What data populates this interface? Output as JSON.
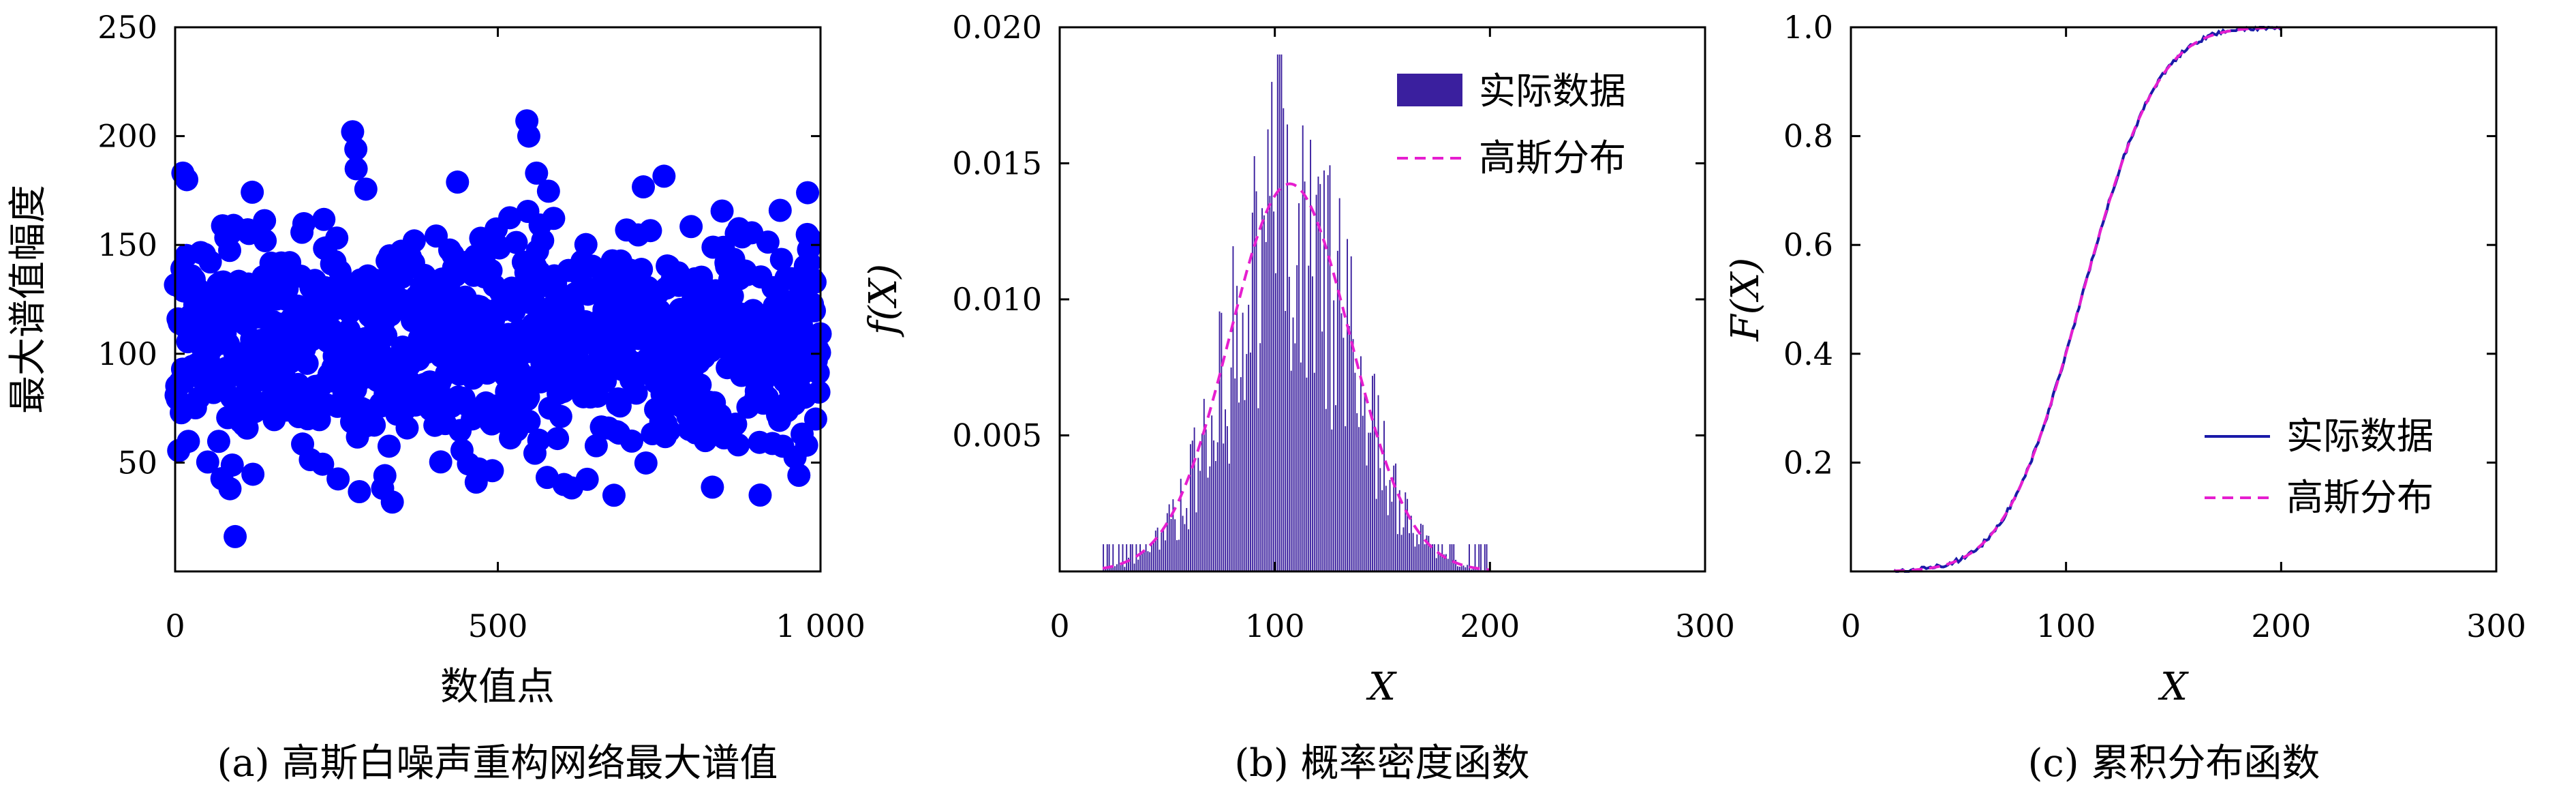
{
  "chart_data": [
    {
      "panel": "a",
      "type": "scatter",
      "caption": "(a) 高斯白噪声重构网络最大谱值",
      "xlabel": "数值点",
      "ylabel": "最大谱值幅度",
      "xlim": [
        0,
        1000
      ],
      "ylim": [
        0,
        250
      ],
      "xticks": [
        0,
        500,
        1000
      ],
      "xtick_labels": [
        "0",
        "500",
        "1 000"
      ],
      "yticks": [
        50,
        100,
        150,
        200,
        250
      ],
      "ytick_labels": [
        "50",
        "100",
        "150",
        "200",
        "250"
      ],
      "marker_color": "#0000ff",
      "n_points": 1000,
      "distribution": {
        "mean": 107,
        "std": 28
      },
      "notable_points": [
        {
          "x": 12,
          "y": 183
        },
        {
          "x": 18,
          "y": 180
        },
        {
          "x": 93,
          "y": 16
        },
        {
          "x": 275,
          "y": 202
        },
        {
          "x": 280,
          "y": 194
        },
        {
          "x": 545,
          "y": 207
        },
        {
          "x": 548,
          "y": 200
        },
        {
          "x": 560,
          "y": 183
        },
        {
          "x": 325,
          "y": 44
        },
        {
          "x": 680,
          "y": 35
        },
        {
          "x": 85,
          "y": 38
        },
        {
          "x": 980,
          "y": 174
        }
      ]
    },
    {
      "panel": "b",
      "type": "bar",
      "caption": "(b) 概率密度函数",
      "xlabel": "X",
      "ylabel": "f(X)",
      "xlim": [
        0,
        300
      ],
      "ylim": [
        0,
        0.02
      ],
      "xticks": [
        0,
        100,
        200,
        300
      ],
      "xtick_labels": [
        "0",
        "100",
        "200",
        "300"
      ],
      "yticks": [
        0.005,
        0.01,
        0.015,
        0.02
      ],
      "ytick_labels": [
        "0.005",
        "0.010",
        "0.015",
        "0.020"
      ],
      "series": [
        {
          "name": "实际数据",
          "kind": "histogram",
          "color": "#3a1f9e",
          "bin_range": [
            20,
            200
          ],
          "peak": 0.019
        },
        {
          "name": "高斯分布",
          "kind": "line",
          "style": "dashed",
          "color": "#e61ecf",
          "mean": 107,
          "std": 28
        }
      ],
      "legend_position": "top-right"
    },
    {
      "panel": "c",
      "type": "line",
      "caption": "(c) 累积分布函数",
      "xlabel": "X",
      "ylabel": "F(X)",
      "xlim": [
        0,
        300
      ],
      "ylim": [
        0,
        1
      ],
      "xticks": [
        0,
        100,
        200,
        300
      ],
      "xtick_labels": [
        "0",
        "100",
        "200",
        "300"
      ],
      "yticks": [
        0.2,
        0.4,
        0.6,
        0.8,
        1.0
      ],
      "ytick_labels": [
        "0.2",
        "0.4",
        "0.6",
        "0.8",
        "1.0"
      ],
      "series": [
        {
          "name": "实际数据",
          "style": "solid",
          "color": "#1a1aa8",
          "x_range": [
            20,
            200
          ]
        },
        {
          "name": "高斯分布",
          "style": "dashed",
          "color": "#e61ecf",
          "mean": 107,
          "std": 28
        }
      ],
      "legend_position": "bottom-right"
    }
  ]
}
